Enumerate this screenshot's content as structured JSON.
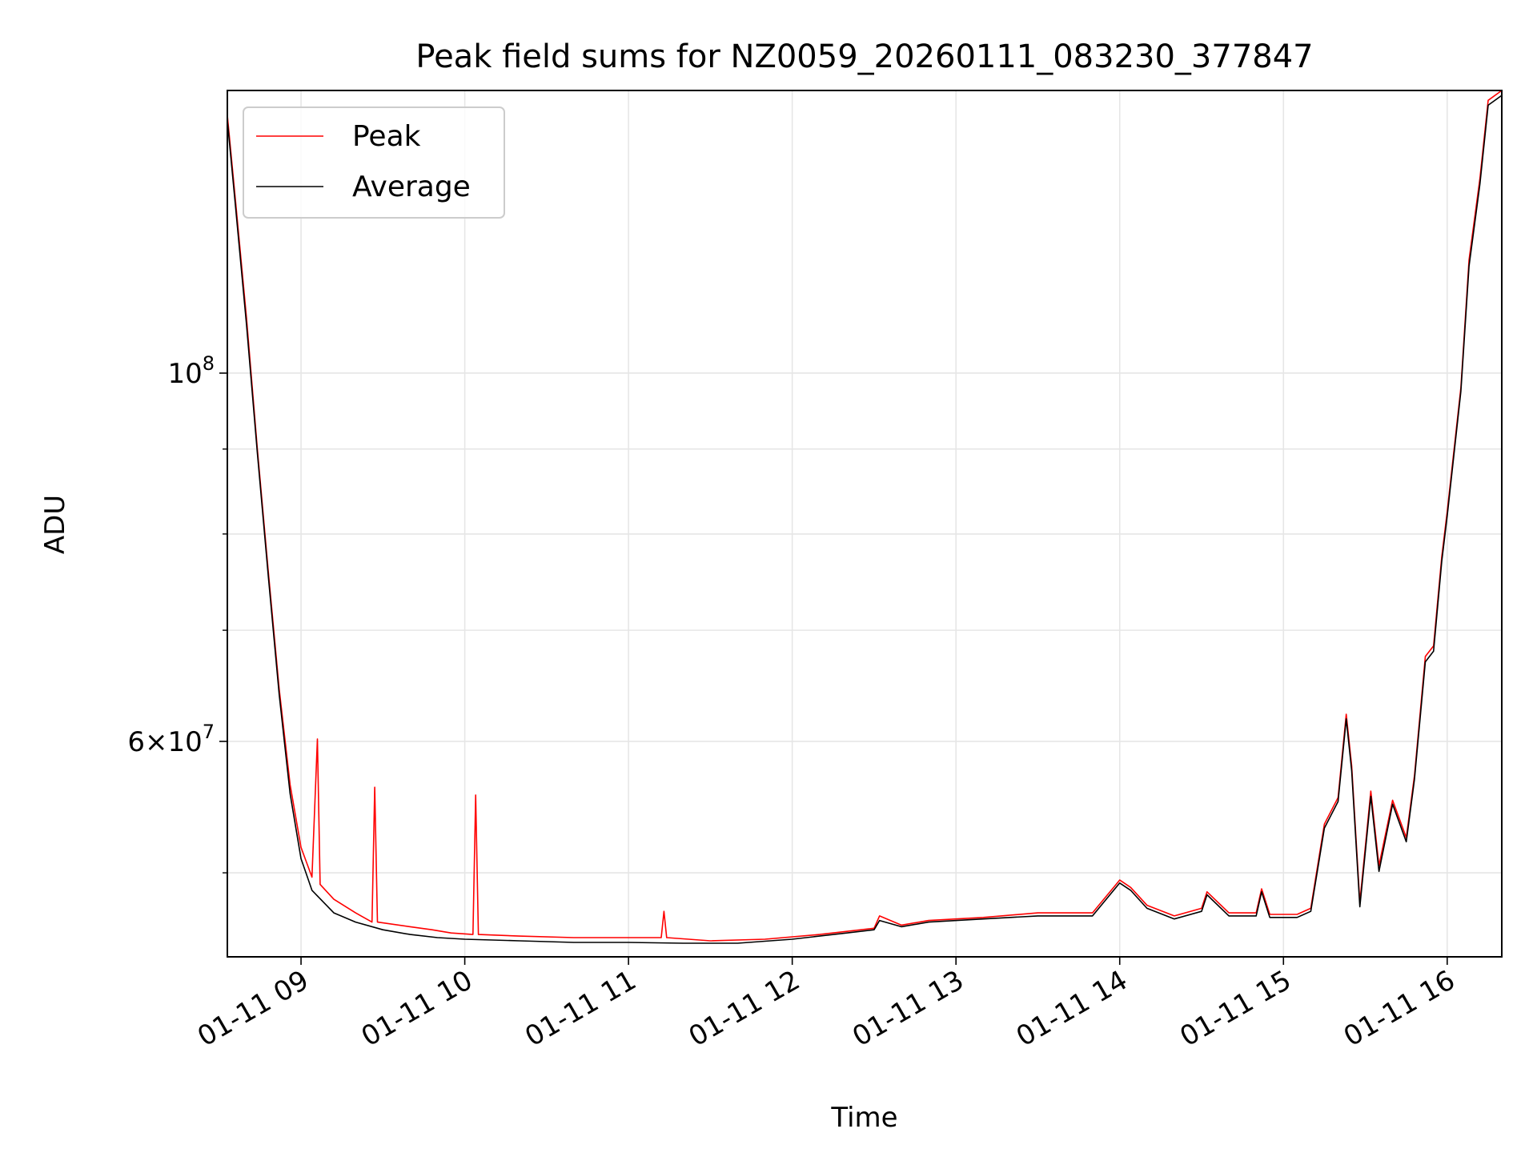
{
  "chart_data": {
    "type": "line",
    "title": "Peak field sums for NZ0059_20260111_083230_377847",
    "xlabel": "Time",
    "ylabel": "ADU",
    "x_range": [
      "2026-01-11 08:33",
      "2026-01-11 16:20"
    ],
    "x_ticks": [
      {
        "x": "2026-01-11 09:00",
        "label": "01-11 09"
      },
      {
        "x": "2026-01-11 10:00",
        "label": "01-11 10"
      },
      {
        "x": "2026-01-11 11:00",
        "label": "01-11 11"
      },
      {
        "x": "2026-01-11 12:00",
        "label": "01-11 12"
      },
      {
        "x": "2026-01-11 13:00",
        "label": "01-11 13"
      },
      {
        "x": "2026-01-11 14:00",
        "label": "01-11 14"
      },
      {
        "x": "2026-01-11 15:00",
        "label": "01-11 15"
      },
      {
        "x": "2026-01-11 16:00",
        "label": "01-11 16"
      }
    ],
    "y_scale": "log",
    "ylim": [
      44500000,
      148000000
    ],
    "y_ticks": [
      {
        "value": 60000000,
        "base": "6",
        "exp": "7"
      },
      {
        "value": 100000000,
        "base": "10",
        "exp": "8"
      }
    ],
    "y_minor_ticks": [
      50000000,
      70000000,
      80000000,
      90000000
    ],
    "grid": true,
    "legend_position": "top-left",
    "colors": {
      "peak": "#ff0000",
      "average": "#000000",
      "grid": "#e6e6e6",
      "legend_border": "#cccccc"
    },
    "series": [
      {
        "name": "Peak",
        "color": "#ff0000",
        "points": [
          [
            "2026-01-11 08:33",
            143000000
          ],
          [
            "2026-01-11 08:36",
            127000000
          ],
          [
            "2026-01-11 08:40",
            108000000
          ],
          [
            "2026-01-11 08:44",
            90000000
          ],
          [
            "2026-01-11 08:48",
            76000000
          ],
          [
            "2026-01-11 08:52",
            64500000
          ],
          [
            "2026-01-11 08:56",
            56500000
          ],
          [
            "2026-01-11 09:00",
            51800000
          ],
          [
            "2026-01-11 09:04",
            49700000
          ],
          [
            "2026-01-11 09:06",
            60200000
          ],
          [
            "2026-01-11 09:07",
            49200000
          ],
          [
            "2026-01-11 09:12",
            48200000
          ],
          [
            "2026-01-11 09:20",
            47300000
          ],
          [
            "2026-01-11 09:26",
            46700000
          ],
          [
            "2026-01-11 09:27",
            56300000
          ],
          [
            "2026-01-11 09:28",
            46700000
          ],
          [
            "2026-01-11 09:40",
            46400000
          ],
          [
            "2026-01-11 09:48",
            46200000
          ],
          [
            "2026-01-11 09:55",
            46000000
          ],
          [
            "2026-01-11 10:03",
            45900000
          ],
          [
            "2026-01-11 10:04",
            55700000
          ],
          [
            "2026-01-11 10:05",
            45900000
          ],
          [
            "2026-01-11 10:20",
            45800000
          ],
          [
            "2026-01-11 10:40",
            45700000
          ],
          [
            "2026-01-11 11:00",
            45700000
          ],
          [
            "2026-01-11 11:12",
            45700000
          ],
          [
            "2026-01-11 11:13",
            47400000
          ],
          [
            "2026-01-11 11:14",
            45700000
          ],
          [
            "2026-01-11 11:30",
            45500000
          ],
          [
            "2026-01-11 11:50",
            45600000
          ],
          [
            "2026-01-11 12:10",
            45900000
          ],
          [
            "2026-01-11 12:30",
            46300000
          ],
          [
            "2026-01-11 12:32",
            47100000
          ],
          [
            "2026-01-11 12:40",
            46500000
          ],
          [
            "2026-01-11 12:50",
            46800000
          ],
          [
            "2026-01-11 13:10",
            47000000
          ],
          [
            "2026-01-11 13:30",
            47300000
          ],
          [
            "2026-01-11 13:50",
            47300000
          ],
          [
            "2026-01-11 14:00",
            49500000
          ],
          [
            "2026-01-11 14:04",
            49000000
          ],
          [
            "2026-01-11 14:10",
            47800000
          ],
          [
            "2026-01-11 14:20",
            47100000
          ],
          [
            "2026-01-11 14:30",
            47600000
          ],
          [
            "2026-01-11 14:32",
            48700000
          ],
          [
            "2026-01-11 14:40",
            47300000
          ],
          [
            "2026-01-11 14:50",
            47300000
          ],
          [
            "2026-01-11 14:52",
            48900000
          ],
          [
            "2026-01-11 14:55",
            47200000
          ],
          [
            "2026-01-11 15:05",
            47200000
          ],
          [
            "2026-01-11 15:10",
            47600000
          ],
          [
            "2026-01-11 15:15",
            53500000
          ],
          [
            "2026-01-11 15:20",
            55500000
          ],
          [
            "2026-01-11 15:23",
            62300000
          ],
          [
            "2026-01-11 15:25",
            58000000
          ],
          [
            "2026-01-11 15:28",
            48000000
          ],
          [
            "2026-01-11 15:32",
            56000000
          ],
          [
            "2026-01-11 15:35",
            50500000
          ],
          [
            "2026-01-11 15:40",
            55300000
          ],
          [
            "2026-01-11 15:45",
            52500000
          ],
          [
            "2026-01-11 15:48",
            57200000
          ],
          [
            "2026-01-11 15:52",
            67500000
          ],
          [
            "2026-01-11 15:55",
            68500000
          ],
          [
            "2026-01-11 15:58",
            77500000
          ],
          [
            "2026-01-11 16:00",
            82500000
          ],
          [
            "2026-01-11 16:05",
            98000000
          ],
          [
            "2026-01-11 16:08",
            117000000
          ],
          [
            "2026-01-11 16:12",
            131000000
          ],
          [
            "2026-01-11 16:15",
            146000000
          ],
          [
            "2026-01-11 16:20",
            148000000
          ]
        ]
      },
      {
        "name": "Average",
        "color": "#000000",
        "points": [
          [
            "2026-01-11 08:33",
            142000000
          ],
          [
            "2026-01-11 08:36",
            126000000
          ],
          [
            "2026-01-11 08:40",
            107000000
          ],
          [
            "2026-01-11 08:44",
            89500000
          ],
          [
            "2026-01-11 08:48",
            75500000
          ],
          [
            "2026-01-11 08:52",
            64000000
          ],
          [
            "2026-01-11 08:56",
            55800000
          ],
          [
            "2026-01-11 09:00",
            51000000
          ],
          [
            "2026-01-11 09:04",
            48800000
          ],
          [
            "2026-01-11 09:12",
            47300000
          ],
          [
            "2026-01-11 09:20",
            46700000
          ],
          [
            "2026-01-11 09:30",
            46200000
          ],
          [
            "2026-01-11 09:40",
            45900000
          ],
          [
            "2026-01-11 09:50",
            45700000
          ],
          [
            "2026-01-11 10:00",
            45600000
          ],
          [
            "2026-01-11 10:20",
            45500000
          ],
          [
            "2026-01-11 10:40",
            45400000
          ],
          [
            "2026-01-11 11:00",
            45400000
          ],
          [
            "2026-01-11 11:20",
            45350000
          ],
          [
            "2026-01-11 11:40",
            45350000
          ],
          [
            "2026-01-11 12:00",
            45600000
          ],
          [
            "2026-01-11 12:20",
            46000000
          ],
          [
            "2026-01-11 12:30",
            46200000
          ],
          [
            "2026-01-11 12:32",
            46800000
          ],
          [
            "2026-01-11 12:40",
            46400000
          ],
          [
            "2026-01-11 12:50",
            46700000
          ],
          [
            "2026-01-11 13:10",
            46900000
          ],
          [
            "2026-01-11 13:30",
            47100000
          ],
          [
            "2026-01-11 13:50",
            47100000
          ],
          [
            "2026-01-11 14:00",
            49300000
          ],
          [
            "2026-01-11 14:04",
            48800000
          ],
          [
            "2026-01-11 14:10",
            47600000
          ],
          [
            "2026-01-11 14:20",
            46900000
          ],
          [
            "2026-01-11 14:30",
            47400000
          ],
          [
            "2026-01-11 14:32",
            48500000
          ],
          [
            "2026-01-11 14:40",
            47100000
          ],
          [
            "2026-01-11 14:50",
            47100000
          ],
          [
            "2026-01-11 14:52",
            48700000
          ],
          [
            "2026-01-11 14:55",
            47000000
          ],
          [
            "2026-01-11 15:05",
            47000000
          ],
          [
            "2026-01-11 15:10",
            47400000
          ],
          [
            "2026-01-11 15:15",
            53200000
          ],
          [
            "2026-01-11 15:20",
            55200000
          ],
          [
            "2026-01-11 15:23",
            61900000
          ],
          [
            "2026-01-11 15:25",
            57600000
          ],
          [
            "2026-01-11 15:28",
            47700000
          ],
          [
            "2026-01-11 15:32",
            55600000
          ],
          [
            "2026-01-11 15:35",
            50100000
          ],
          [
            "2026-01-11 15:40",
            55000000
          ],
          [
            "2026-01-11 15:45",
            52200000
          ],
          [
            "2026-01-11 15:48",
            56900000
          ],
          [
            "2026-01-11 15:52",
            67000000
          ],
          [
            "2026-01-11 15:55",
            68000000
          ],
          [
            "2026-01-11 15:58",
            77000000
          ],
          [
            "2026-01-11 16:00",
            82000000
          ],
          [
            "2026-01-11 16:05",
            97500000
          ],
          [
            "2026-01-11 16:08",
            116000000
          ],
          [
            "2026-01-11 16:12",
            130000000
          ],
          [
            "2026-01-11 16:15",
            145000000
          ],
          [
            "2026-01-11 16:20",
            147000000
          ]
        ]
      }
    ]
  }
}
